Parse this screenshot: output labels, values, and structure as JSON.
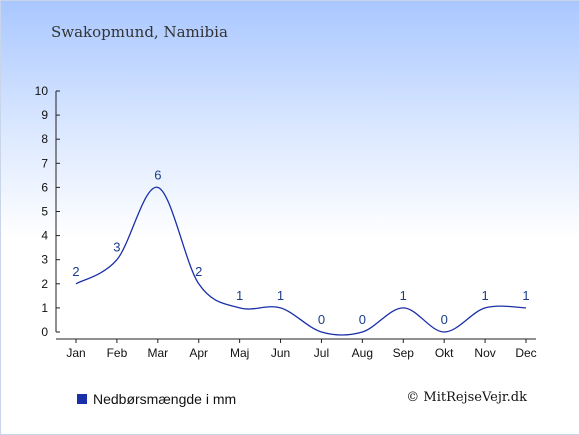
{
  "header": {
    "location": "Swakopmund, Namibia"
  },
  "chart_data": {
    "type": "line",
    "categories": [
      "Jan",
      "Feb",
      "Mar",
      "Apr",
      "Maj",
      "Jun",
      "Jul",
      "Aug",
      "Sep",
      "Okt",
      "Nov",
      "Dec"
    ],
    "series": [
      {
        "name": "Nedbørsmængde i mm",
        "values": [
          2,
          3,
          6,
          2,
          1,
          1,
          0,
          0,
          1,
          0,
          1,
          1
        ]
      }
    ],
    "ylim": [
      0,
      10
    ],
    "yticks": [
      0,
      1,
      2,
      3,
      4,
      5,
      6,
      7,
      8,
      9,
      10
    ],
    "grid": false,
    "line_color": "#1b2fa8",
    "legend_position": "bottom-left"
  },
  "legend": {
    "label": "Nedbørsmængde i mm"
  },
  "credit": {
    "text": "© MitRejseVejr.dk"
  }
}
